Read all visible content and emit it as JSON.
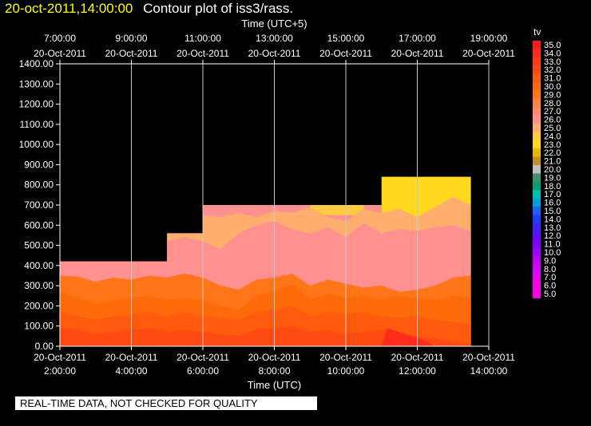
{
  "header": {
    "datetime": "20-oct-2011,14:00:00",
    "title": "Contour plot of iss3/rass."
  },
  "note": "REAL-TIME DATA, NOT CHECKED FOR QUALITY",
  "chart_data": {
    "type": "heatmap",
    "title": "Contour plot of iss3/rass.",
    "top_axis": {
      "label": "Time (UTC+5)",
      "ticks": [
        {
          "time": "7:00:00",
          "date": "20-Oct-2011"
        },
        {
          "time": "9:00:00",
          "date": "20-Oct-2011"
        },
        {
          "time": "11:00:00",
          "date": "20-Oct-2011"
        },
        {
          "time": "13:00:00",
          "date": "20-Oct-2011"
        },
        {
          "time": "15:00:00",
          "date": "20-Oct-2011"
        },
        {
          "time": "17:00:00",
          "date": "20-Oct-2011"
        },
        {
          "time": "19:00:00",
          "date": "20-Oct-2011"
        }
      ]
    },
    "x_axis": {
      "label": "Time (UTC)",
      "range": [
        "2011-10-20 02:00",
        "2011-10-20 14:00"
      ],
      "ticks": [
        {
          "date": "20-Oct-2011",
          "time": "2:00:00"
        },
        {
          "date": "20-Oct-2011",
          "time": "4:00:00"
        },
        {
          "date": "20-Oct-2011",
          "time": "6:00:00"
        },
        {
          "date": "20-Oct-2011",
          "time": "8:00:00"
        },
        {
          "date": "20-Oct-2011",
          "time": "10:00:00"
        },
        {
          "date": "20-Oct-2011",
          "time": "12:00:00"
        },
        {
          "date": "20-Oct-2011",
          "time": "14:00:00"
        }
      ]
    },
    "y_axis": {
      "label": "",
      "range": [
        0,
        1400
      ],
      "ticks": [
        "0.00",
        "100.00",
        "200.00",
        "300.00",
        "400.00",
        "500.00",
        "600.00",
        "700.00",
        "800.00",
        "900.00",
        "1000.00",
        "1100.00",
        "1200.00",
        "1300.00",
        "1400.00"
      ]
    },
    "grid": "vertical lines at x ticks",
    "colorbar": {
      "label": "tv",
      "levels": [
        {
          "value": "35.0",
          "color": "#ff1a1a"
        },
        {
          "value": "34.0",
          "color": "#ff2b1a"
        },
        {
          "value": "33.0",
          "color": "#ff3a16"
        },
        {
          "value": "32.0",
          "color": "#ff4a12"
        },
        {
          "value": "31.0",
          "color": "#ff5a0e"
        },
        {
          "value": "30.0",
          "color": "#ff6a0a"
        },
        {
          "value": "29.0",
          "color": "#ff7518"
        },
        {
          "value": "28.0",
          "color": "#ff8040"
        },
        {
          "value": "27.0",
          "color": "#ff8a68"
        },
        {
          "value": "26.0",
          "color": "#ff9090"
        },
        {
          "value": "25.0",
          "color": "#ffae6e"
        },
        {
          "value": "24.0",
          "color": "#ffcc40"
        },
        {
          "value": "23.0",
          "color": "#ffd820"
        },
        {
          "value": "22.0",
          "color": "#e6b800"
        },
        {
          "value": "21.0",
          "color": "#c89020"
        },
        {
          "value": "20.0",
          "color": "#c0c0c0"
        },
        {
          "value": "19.0",
          "color": "#409070"
        },
        {
          "value": "18.0",
          "color": "#00a070"
        },
        {
          "value": "17.0",
          "color": "#00c0b0"
        },
        {
          "value": "16.0",
          "color": "#00a0e0"
        },
        {
          "value": "15.0",
          "color": "#2060ff"
        },
        {
          "value": "14.0",
          "color": "#2040ff"
        },
        {
          "value": "13.0",
          "color": "#4020ff"
        },
        {
          "value": "12.0",
          "color": "#6010ff"
        },
        {
          "value": "11.0",
          "color": "#8000ff"
        },
        {
          "value": "10.0",
          "color": "#a000ff"
        },
        {
          "value": "9.0",
          "color": "#c000ff"
        },
        {
          "value": "8.0",
          "color": "#d800ff"
        },
        {
          "value": "7.0",
          "color": "#e800f0"
        },
        {
          "value": "6.0",
          "color": "#f800e8"
        },
        {
          "value": "5.0",
          "color": "#ff00e0"
        }
      ]
    },
    "coverage_steps": [
      {
        "start": "02:00",
        "end": "05:00",
        "top": 420
      },
      {
        "start": "05:00",
        "end": "06:00",
        "top": 560
      },
      {
        "start": "06:00",
        "end": "11:00",
        "top": 700
      },
      {
        "start": "11:00",
        "end": "13:30",
        "top": 840
      }
    ],
    "bands": [
      {
        "level": "29.0",
        "tops": [
          [
            "02:00",
            350
          ],
          [
            "02:30",
            345
          ],
          [
            "03:00",
            320
          ],
          [
            "03:30",
            340
          ],
          [
            "04:00",
            330
          ],
          [
            "04:30",
            350
          ],
          [
            "05:00",
            340
          ],
          [
            "05:30",
            360
          ],
          [
            "06:00",
            340
          ],
          [
            "06:30",
            300
          ],
          [
            "07:00",
            280
          ],
          [
            "07:30",
            330
          ],
          [
            "08:00",
            340
          ],
          [
            "08:30",
            360
          ],
          [
            "09:00",
            300
          ],
          [
            "09:30",
            330
          ],
          [
            "10:00",
            310
          ],
          [
            "10:30",
            290
          ],
          [
            "11:00",
            300
          ],
          [
            "11:30",
            270
          ],
          [
            "12:00",
            280
          ],
          [
            "12:30",
            300
          ],
          [
            "13:00",
            340
          ],
          [
            "13:30",
            350
          ]
        ]
      },
      {
        "level": "30.0",
        "tops": [
          [
            "02:00",
            270
          ],
          [
            "02:30",
            240
          ],
          [
            "03:00",
            210
          ],
          [
            "03:30",
            230
          ],
          [
            "04:00",
            240
          ],
          [
            "04:30",
            250
          ],
          [
            "05:00",
            230
          ],
          [
            "05:30",
            240
          ],
          [
            "06:00",
            230
          ],
          [
            "06:30",
            200
          ],
          [
            "07:00",
            180
          ],
          [
            "07:30",
            250
          ],
          [
            "08:00",
            270
          ],
          [
            "08:30",
            310
          ],
          [
            "09:00",
            230
          ],
          [
            "09:30",
            260
          ],
          [
            "10:00",
            240
          ],
          [
            "10:30",
            250
          ],
          [
            "11:00",
            230
          ],
          [
            "11:30",
            250
          ],
          [
            "12:00",
            240
          ],
          [
            "12:30",
            230
          ],
          [
            "13:00",
            250
          ],
          [
            "13:30",
            240
          ]
        ]
      },
      {
        "level": "31.0",
        "tops": [
          [
            "02:00",
            170
          ],
          [
            "02:30",
            150
          ],
          [
            "03:00",
            130
          ],
          [
            "03:30",
            150
          ],
          [
            "04:00",
            160
          ],
          [
            "04:30",
            170
          ],
          [
            "05:00",
            150
          ],
          [
            "05:30",
            170
          ],
          [
            "06:00",
            150
          ],
          [
            "06:30",
            140
          ],
          [
            "07:00",
            130
          ],
          [
            "07:30",
            170
          ],
          [
            "08:00",
            180
          ],
          [
            "08:30",
            200
          ],
          [
            "09:00",
            150
          ],
          [
            "09:30",
            170
          ],
          [
            "10:00",
            160
          ],
          [
            "10:30",
            170
          ],
          [
            "11:00",
            150
          ],
          [
            "11:30",
            140
          ],
          [
            "12:00",
            150
          ],
          [
            "12:30",
            130
          ],
          [
            "13:00",
            120
          ],
          [
            "13:30",
            110
          ]
        ]
      },
      {
        "level": "32.0",
        "tops": [
          [
            "02:00",
            90
          ],
          [
            "02:30",
            80
          ],
          [
            "03:00",
            60
          ],
          [
            "03:30",
            70
          ],
          [
            "04:00",
            80
          ],
          [
            "04:30",
            90
          ],
          [
            "05:00",
            70
          ],
          [
            "05:30",
            80
          ],
          [
            "06:00",
            70
          ],
          [
            "06:30",
            60
          ],
          [
            "07:00",
            50
          ],
          [
            "07:30",
            80
          ],
          [
            "08:00",
            90
          ],
          [
            "08:30",
            100
          ],
          [
            "09:00",
            70
          ],
          [
            "09:30",
            80
          ],
          [
            "10:00",
            60
          ],
          [
            "10:30",
            70
          ],
          [
            "11:00",
            80
          ],
          [
            "11:30",
            70
          ],
          [
            "12:00",
            50
          ],
          [
            "12:30",
            40
          ],
          [
            "13:00",
            20
          ],
          [
            "13:30",
            10
          ]
        ]
      }
    ]
  }
}
